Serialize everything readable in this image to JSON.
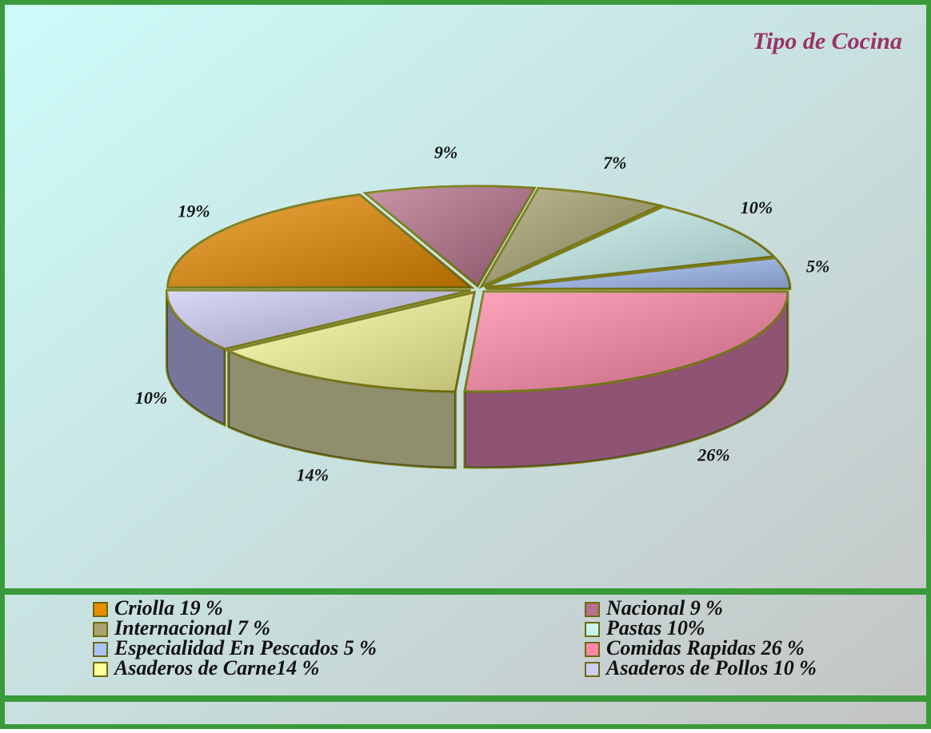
{
  "chart_data": {
    "type": "pie3d",
    "title": "Tipo de Cocina",
    "categories": [
      "Criolla 19 %",
      "Nacional 9 %",
      "Internacional 7 %",
      "Pastas 10%",
      "Especialidad En Pescados 5 %",
      "Comidas Rapidas 26 %",
      "Asaderos de Carne14 %",
      "Asaderos de Pollos 10 %"
    ],
    "values": [
      19,
      9,
      7,
      10,
      5,
      26,
      14,
      10
    ],
    "value_labels": [
      "19%",
      "9%",
      "7%",
      "10%",
      "5%",
      "26%",
      "14%",
      "10%"
    ],
    "colors": [
      "#e88c00",
      "#b8708c",
      "#a8a470",
      "#c8f4f0",
      "#a8c4ff",
      "#ff88a8",
      "#ffff9c",
      "#ccccf4"
    ],
    "legend": "bottom"
  }
}
